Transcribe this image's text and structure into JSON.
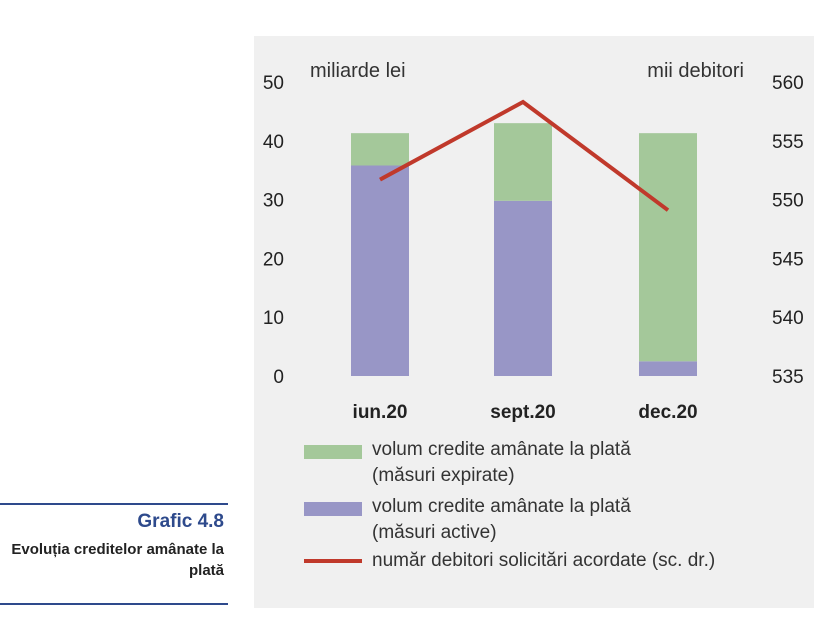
{
  "caption": {
    "title": "Grafic 4.8",
    "subtitle": "Evoluția creditelor amânate la plată"
  },
  "chart_data": {
    "type": "bar",
    "stacked": true,
    "categories": [
      "iun.20",
      "sept.20",
      "dec.20"
    ],
    "left_axis_label": "miliarde lei",
    "right_axis_label": "mii debitori",
    "ylim_left": [
      0,
      50
    ],
    "yticks_left": [
      0,
      10,
      20,
      30,
      40,
      50
    ],
    "ylim_right": [
      535,
      560
    ],
    "yticks_right": [
      535,
      540,
      545,
      550,
      555,
      560
    ],
    "series": [
      {
        "name": "volum credite amânate la plată (măsuri active)",
        "kind": "bar",
        "axis": "left",
        "color": "#9896c6",
        "values": [
          35.8,
          29.8,
          2.5
        ]
      },
      {
        "name": "volum credite amânate la plată (măsuri expirate)",
        "kind": "bar",
        "axis": "left",
        "color": "#a4c89a",
        "values": [
          5.5,
          13.2,
          38.8
        ]
      },
      {
        "name": "număr debitori solicitări acordate (sc. dr.)",
        "kind": "line",
        "axis": "right",
        "color": "#c0392b",
        "values": [
          551.7,
          558.3,
          549.1
        ]
      }
    ],
    "legend": [
      {
        "label_line1": "volum credite amânate la plată",
        "label_line2": "(măsuri expirate)",
        "swatch": "bar",
        "color": "#a4c89a"
      },
      {
        "label_line1": "volum credite amânate la plată",
        "label_line2": "(măsuri active)",
        "swatch": "bar",
        "color": "#9896c6"
      },
      {
        "label_line1": "număr debitori solicitări acordate (sc. dr.)",
        "label_line2": "",
        "swatch": "line",
        "color": "#c0392b"
      }
    ],
    "legend_position": "bottom",
    "grid": false
  }
}
